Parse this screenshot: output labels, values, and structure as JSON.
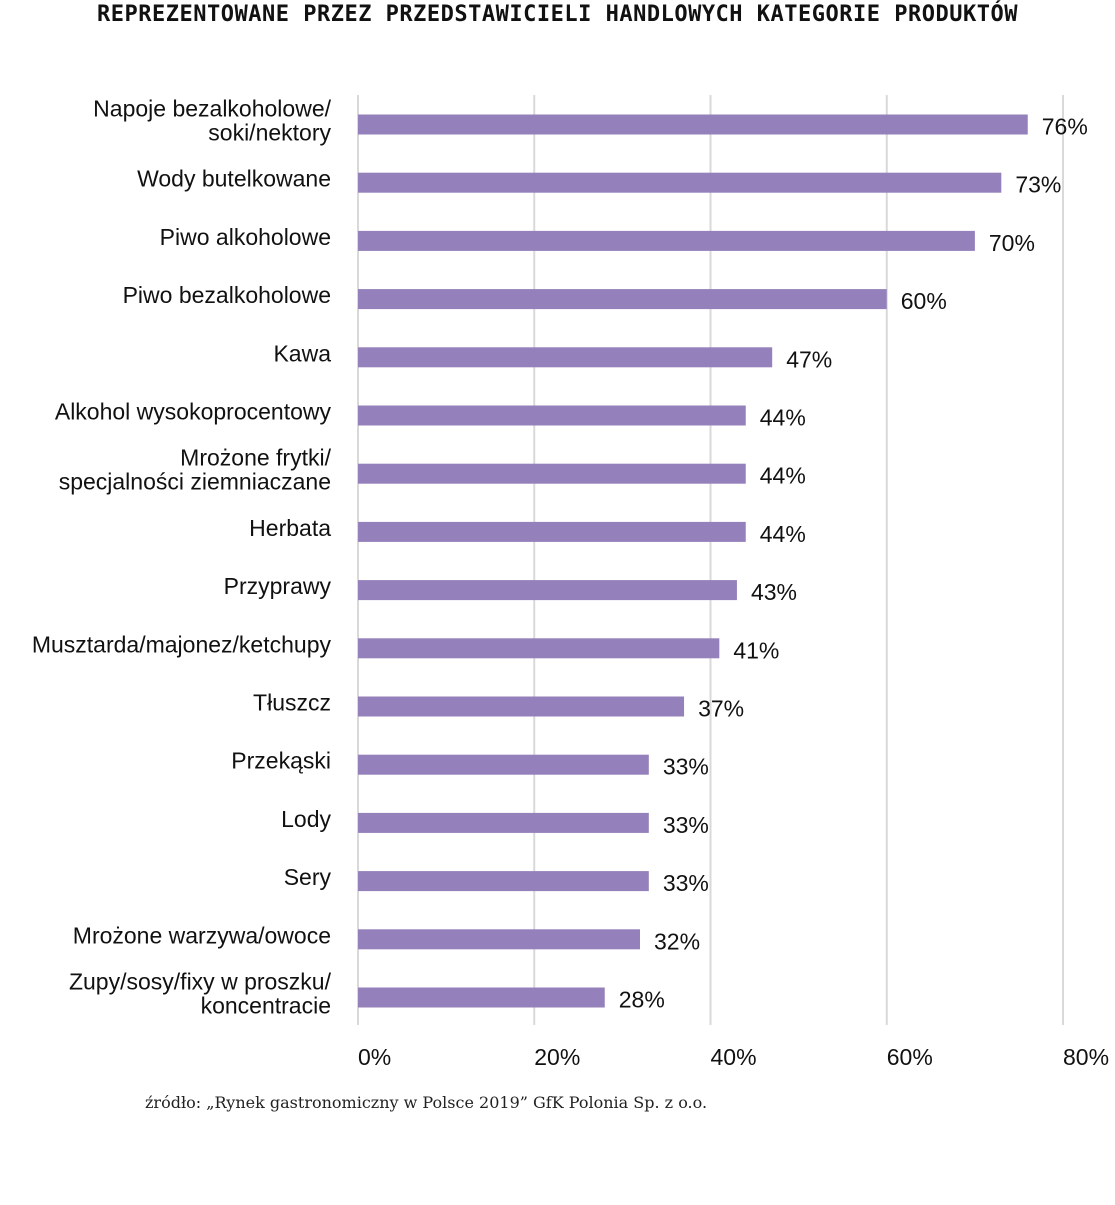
{
  "chart_data": {
    "type": "bar",
    "orientation": "horizontal",
    "title": "REPREZENTOWANE PRZEZ PRZEDSTAWICIELI HANDLOWYCH KATEGORIE PRODUKTÓW",
    "categories": [
      [
        "Napoje bezalkoholowe/",
        "soki/nektory"
      ],
      [
        "Wody butelkowane"
      ],
      [
        "Piwo alkoholowe"
      ],
      [
        "Piwo bezalkoholowe"
      ],
      [
        "Kawa"
      ],
      [
        "Alkohol wysokoprocentowy"
      ],
      [
        "Mrożone frytki/",
        "specjalności ziemniaczane"
      ],
      [
        "Herbata"
      ],
      [
        "Przyprawy"
      ],
      [
        "Musztarda/majonez/ketchupy"
      ],
      [
        "Tłuszcz"
      ],
      [
        "Przekąski"
      ],
      [
        "Lody"
      ],
      [
        "Sery"
      ],
      [
        "Mrożone warzywa/owoce"
      ],
      [
        "Zupy/sosy/fixy w proszku/",
        "koncentracie"
      ]
    ],
    "values": [
      76,
      73,
      70,
      60,
      47,
      44,
      44,
      44,
      43,
      41,
      37,
      33,
      33,
      33,
      32,
      28
    ],
    "value_labels": [
      "76%",
      "73%",
      "70%",
      "60%",
      "47%",
      "44%",
      "44%",
      "44%",
      "43%",
      "41%",
      "37%",
      "33%",
      "33%",
      "33%",
      "32%",
      "28%"
    ],
    "xlim": [
      0,
      80
    ],
    "xticks": [
      0,
      20,
      40,
      60,
      80
    ],
    "xtick_labels": [
      "0%",
      "20%",
      "40%",
      "60%",
      "80%"
    ],
    "xlabel": "",
    "ylabel": "",
    "grid": true,
    "bar_color": "#9480BA",
    "grid_color": "#D9D9D9"
  },
  "source": "źródło: „Rynek gastronomiczny w Polsce 2019” GfK Polonia Sp. z o.o."
}
